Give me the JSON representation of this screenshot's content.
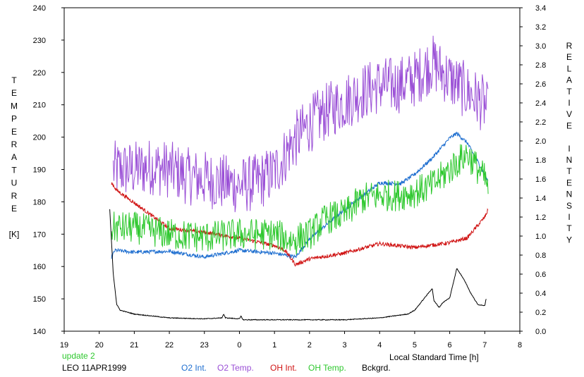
{
  "chart_data": {
    "type": "line",
    "xlabel": "Local Standard Time [h]",
    "ylabel_left_letters": [
      "T",
      "E",
      "M",
      "P",
      "E",
      "R",
      "A",
      "T",
      "U",
      "R",
      "E",
      "",
      "[K]"
    ],
    "ylabel_right_letters": [
      "R",
      "E",
      "L",
      "A",
      "T",
      "I",
      "V",
      "E",
      "",
      "I",
      "N",
      "T",
      "E",
      "N",
      "S",
      "I",
      "T",
      "Y"
    ],
    "xlim": [
      19,
      32
    ],
    "ylim_left": [
      140,
      240
    ],
    "ylim_right": [
      0.0,
      3.4
    ],
    "x_ticks": [
      19,
      20,
      21,
      22,
      23,
      24,
      25,
      26,
      27,
      28,
      29,
      30,
      31,
      32
    ],
    "x_tick_labels": [
      "19",
      "20",
      "21",
      "22",
      "23",
      "0",
      "1",
      "2",
      "3",
      "4",
      "5",
      "6",
      "7",
      "8"
    ],
    "y_left_ticks": [
      140,
      150,
      160,
      170,
      180,
      190,
      200,
      210,
      220,
      230,
      240
    ],
    "y_right_ticks": [
      "0.0",
      "0.2",
      "0.4",
      "0.6",
      "0.8",
      "1.0",
      "1.2",
      "1.4",
      "1.6",
      "1.8",
      "2.0",
      "2.2",
      "2.4",
      "2.6",
      "2.8",
      "3.0",
      "3.2",
      "3.4"
    ],
    "grid": false,
    "status_text": "update 2",
    "station_date": "LEO 11APR1999",
    "legend": [
      {
        "name": "O2 Int.",
        "color": "#1f6fd0"
      },
      {
        "name": "O2 Temp.",
        "color": "#9a4fd6"
      },
      {
        "name": "OH Int.",
        "color": "#d01414"
      },
      {
        "name": "OH Temp.",
        "color": "#2ec82e"
      },
      {
        "name": "Bckgrd.",
        "color": "#000000"
      }
    ],
    "series": [
      {
        "name": "O2 Temp.",
        "axis": "left",
        "color": "#9a4fd6",
        "noise": 9,
        "x": [
          20.4,
          21,
          21.5,
          22,
          22.5,
          23,
          23.5,
          24,
          24.5,
          25,
          25.5,
          26,
          26.5,
          27,
          27.5,
          28,
          28.5,
          29,
          29.5,
          30,
          30.5,
          31,
          31.1
        ],
        "y": [
          190,
          190,
          191,
          190,
          188,
          187,
          186,
          185,
          186,
          189,
          198,
          204,
          208,
          211,
          214,
          216,
          216,
          218,
          223,
          218,
          214,
          210,
          207
        ]
      },
      {
        "name": "O2 Int.",
        "axis": "right",
        "color": "#1f6fd0",
        "noise": 0.02,
        "x": [
          20.35,
          20.45,
          21,
          22,
          23,
          24,
          25,
          25.6,
          26,
          27,
          28,
          28.6,
          29,
          29.5,
          30,
          30.2,
          30.5,
          31,
          31.1
        ],
        "y": [
          0.78,
          0.85,
          0.83,
          0.84,
          0.78,
          0.85,
          0.82,
          0.78,
          0.97,
          1.28,
          1.56,
          1.55,
          1.65,
          1.82,
          2.03,
          2.08,
          1.98,
          1.65,
          1.56
        ]
      },
      {
        "name": "OH Int.",
        "axis": "right",
        "color": "#d01414",
        "noise": 0.02,
        "x": [
          20.35,
          20.5,
          21,
          22,
          23,
          24,
          25,
          25.3,
          25.6,
          26,
          27,
          28,
          29,
          30,
          30.5,
          31,
          31.1
        ],
        "y": [
          1.56,
          1.48,
          1.35,
          1.08,
          1.04,
          0.98,
          0.9,
          0.85,
          0.7,
          0.76,
          0.82,
          0.92,
          0.88,
          0.93,
          0.98,
          1.2,
          1.28
        ]
      },
      {
        "name": "OH Temp.",
        "axis": "left",
        "color": "#2ec82e",
        "noise": 5,
        "x": [
          20.35,
          21,
          22,
          23,
          24,
          25,
          25.5,
          26,
          26.5,
          27,
          27.5,
          28,
          28.5,
          29,
          29.5,
          30,
          30.5,
          31,
          31.1
        ],
        "y": [
          172,
          172,
          170,
          169,
          170,
          170,
          168,
          170,
          175,
          176,
          181,
          182,
          182,
          183,
          185,
          190,
          195,
          187,
          184
        ]
      },
      {
        "name": "Bckgrd.",
        "axis": "right",
        "color": "#000000",
        "noise": 0.004,
        "x": [
          20.3,
          20.4,
          20.5,
          20.6,
          21,
          22,
          23,
          23.5,
          23.55,
          23.6,
          24,
          24.05,
          24.1,
          25,
          26,
          27,
          28,
          28.8,
          29,
          29.5,
          29.55,
          29.7,
          29.8,
          30,
          30.2,
          30.4,
          30.6,
          30.8,
          31,
          31.05
        ],
        "y": [
          1.28,
          0.6,
          0.28,
          0.22,
          0.18,
          0.14,
          0.13,
          0.14,
          0.18,
          0.14,
          0.13,
          0.16,
          0.12,
          0.12,
          0.12,
          0.12,
          0.14,
          0.18,
          0.22,
          0.45,
          0.32,
          0.25,
          0.3,
          0.35,
          0.66,
          0.55,
          0.4,
          0.28,
          0.27,
          0.36
        ]
      }
    ]
  }
}
